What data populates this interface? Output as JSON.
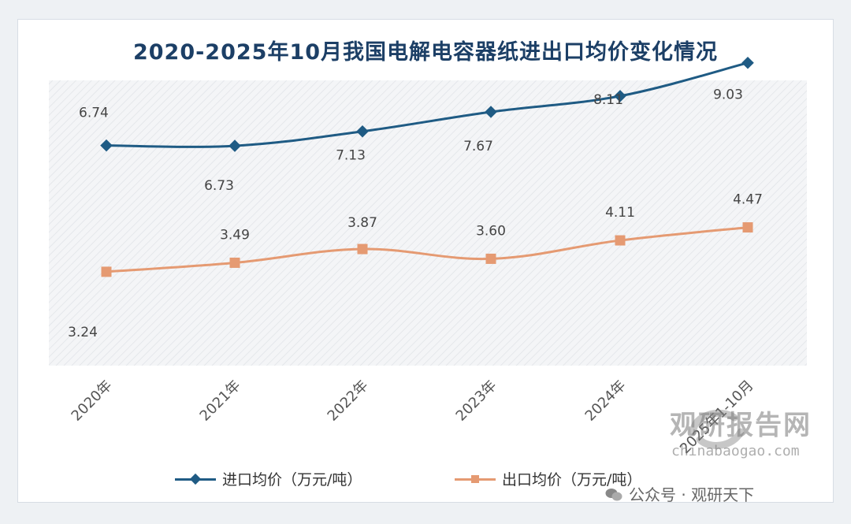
{
  "chart_data": {
    "type": "line",
    "title": "2020-2025年10月我国电解电容器纸进出口均价变化情况",
    "categories": [
      "2020年",
      "2021年",
      "2022年",
      "2023年",
      "2024年",
      "2025年1-10月"
    ],
    "series": [
      {
        "name": "进口均价（万元/吨）",
        "values": [
          6.74,
          6.73,
          7.13,
          7.67,
          8.11,
          9.03
        ],
        "labels": [
          "6.74",
          "6.73",
          "7.13",
          "7.67",
          "8.11",
          "9.03"
        ],
        "color": "#1f5b84",
        "marker": "diamond"
      },
      {
        "name": "出口均价（万元/吨）",
        "values": [
          3.24,
          3.49,
          3.87,
          3.6,
          4.11,
          4.47
        ],
        "labels": [
          "3.24",
          "3.49",
          "3.87",
          "3.60",
          "4.11",
          "4.47"
        ],
        "color": "#e59a72",
        "marker": "square"
      }
    ],
    "legend_position": "bottom",
    "grid": false,
    "plot_background": "diagonal-hatch"
  },
  "watermark": {
    "logo_text": "观研报告网",
    "url": "chinabaogao.com",
    "wechat": "公众号 · 观研天下"
  }
}
